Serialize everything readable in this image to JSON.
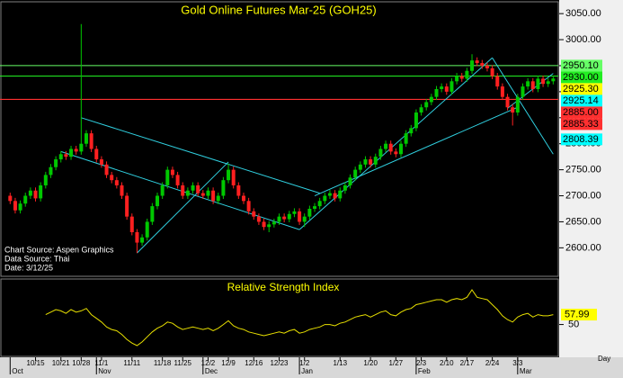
{
  "chart_data": {
    "type": "candlestick",
    "title": "Gold Online Futures Mar-25 (GOH25)",
    "notes": [
      "Chart Source: Aspen Graphics",
      "Data Source: Thai",
      "Date: 3/12/25"
    ],
    "x_axis_label": "Day",
    "up_color": "#00c800",
    "down_color": "#ff2020",
    "xlim": [
      -2,
      108
    ],
    "ylim": [
      2547,
      3071
    ],
    "yticks": [
      {
        "value": 3050,
        "label": "3050.00"
      },
      {
        "value": 3000,
        "label": "3000.00"
      },
      {
        "value": 2950,
        "label": "2950.00"
      },
      {
        "value": 2900,
        "label": "2900.00"
      },
      {
        "value": 2850,
        "label": "2850.00"
      },
      {
        "value": 2800,
        "label": "2800.00"
      },
      {
        "value": 2750,
        "label": "2750.00"
      },
      {
        "value": 2700,
        "label": "2700.00"
      },
      {
        "value": 2650,
        "label": "2650.00"
      },
      {
        "value": 2600,
        "label": "2600.00"
      }
    ],
    "xticks": [
      {
        "value": 5,
        "label": "10/15"
      },
      {
        "value": 10,
        "label": "10/21"
      },
      {
        "value": 14,
        "label": "10/28"
      },
      {
        "value": 18,
        "label": "11/1"
      },
      {
        "value": 24,
        "label": "11/11"
      },
      {
        "value": 30,
        "label": "11/18"
      },
      {
        "value": 34,
        "label": "11/25"
      },
      {
        "value": 39,
        "label": "12/2"
      },
      {
        "value": 43,
        "label": "12/9"
      },
      {
        "value": 48,
        "label": "12/16"
      },
      {
        "value": 53,
        "label": "12/23"
      },
      {
        "value": 58,
        "label": "1/2"
      },
      {
        "value": 65,
        "label": "1/13"
      },
      {
        "value": 71,
        "label": "1/20"
      },
      {
        "value": 76,
        "label": "1/27"
      },
      {
        "value": 81,
        "label": "2/3"
      },
      {
        "value": 86,
        "label": "2/10"
      },
      {
        "value": 90,
        "label": "2/17"
      },
      {
        "value": 95,
        "label": "2/24"
      },
      {
        "value": 100,
        "label": "3/3"
      }
    ],
    "months": [
      {
        "value": 0,
        "label": "Oct"
      },
      {
        "value": 17,
        "label": "Nov"
      },
      {
        "value": 38,
        "label": "Dec"
      },
      {
        "value": 57,
        "label": "Jan"
      },
      {
        "value": 80,
        "label": "Feb"
      },
      {
        "value": 100,
        "label": "Mar"
      }
    ],
    "candles": [
      [
        2700,
        2706,
        2684,
        2690
      ],
      [
        2690,
        2696,
        2666,
        2672
      ],
      [
        2672,
        2691,
        2666,
        2685
      ],
      [
        2685,
        2706,
        2679,
        2700
      ],
      [
        2700,
        2716,
        2694,
        2710
      ],
      [
        2710,
        2716,
        2689,
        2695
      ],
      [
        2695,
        2726,
        2689,
        2720
      ],
      [
        2720,
        2746,
        2714,
        2740
      ],
      [
        2740,
        2761,
        2734,
        2755
      ],
      [
        2755,
        2776,
        2749,
        2770
      ],
      [
        2770,
        2786,
        2764,
        2780
      ],
      [
        2780,
        2786,
        2769,
        2775
      ],
      [
        2775,
        2796,
        2769,
        2790
      ],
      [
        2790,
        2796,
        2779,
        2785
      ],
      [
        2785,
        3030,
        2779,
        2800
      ],
      [
        2800,
        2826,
        2794,
        2820
      ],
      [
        2820,
        2826,
        2784,
        2790
      ],
      [
        2790,
        2796,
        2764,
        2770
      ],
      [
        2770,
        2776,
        2754,
        2760
      ],
      [
        2760,
        2766,
        2734,
        2740
      ],
      [
        2740,
        2746,
        2724,
        2730
      ],
      [
        2730,
        2736,
        2714,
        2720
      ],
      [
        2720,
        2726,
        2694,
        2700
      ],
      [
        2700,
        2706,
        2654,
        2660
      ],
      [
        2660,
        2666,
        2624,
        2630
      ],
      [
        2630,
        2636,
        2590,
        2610
      ],
      [
        2610,
        2626,
        2604,
        2620
      ],
      [
        2620,
        2656,
        2614,
        2650
      ],
      [
        2650,
        2686,
        2644,
        2680
      ],
      [
        2680,
        2706,
        2674,
        2700
      ],
      [
        2700,
        2726,
        2694,
        2720
      ],
      [
        2720,
        2756,
        2714,
        2750
      ],
      [
        2750,
        2756,
        2734,
        2740
      ],
      [
        2740,
        2746,
        2714,
        2720
      ],
      [
        2720,
        2726,
        2694,
        2700
      ],
      [
        2700,
        2716,
        2694,
        2710
      ],
      [
        2710,
        2726,
        2704,
        2720
      ],
      [
        2720,
        2726,
        2699,
        2705
      ],
      [
        2705,
        2711,
        2694,
        2700
      ],
      [
        2700,
        2716,
        2694,
        2710
      ],
      [
        2710,
        2716,
        2684,
        2690
      ],
      [
        2690,
        2706,
        2684,
        2700
      ],
      [
        2700,
        2736,
        2694,
        2730
      ],
      [
        2730,
        2762,
        2724,
        2750
      ],
      [
        2750,
        2756,
        2714,
        2720
      ],
      [
        2720,
        2726,
        2694,
        2700
      ],
      [
        2700,
        2706,
        2684,
        2690
      ],
      [
        2690,
        2696,
        2664,
        2670
      ],
      [
        2670,
        2676,
        2654,
        2660
      ],
      [
        2660,
        2666,
        2644,
        2650
      ],
      [
        2650,
        2656,
        2634,
        2640
      ],
      [
        2640,
        2651,
        2630,
        2645
      ],
      [
        2645,
        2656,
        2639,
        2650
      ],
      [
        2650,
        2666,
        2644,
        2660
      ],
      [
        2660,
        2666,
        2649,
        2655
      ],
      [
        2655,
        2671,
        2649,
        2665
      ],
      [
        2665,
        2676,
        2659,
        2670
      ],
      [
        2670,
        2676,
        2644,
        2650
      ],
      [
        2650,
        2666,
        2640,
        2660
      ],
      [
        2660,
        2681,
        2654,
        2675
      ],
      [
        2675,
        2686,
        2669,
        2680
      ],
      [
        2680,
        2696,
        2674,
        2690
      ],
      [
        2690,
        2706,
        2684,
        2700
      ],
      [
        2700,
        2711,
        2694,
        2705
      ],
      [
        2705,
        2711,
        2689,
        2695
      ],
      [
        2695,
        2716,
        2689,
        2710
      ],
      [
        2710,
        2726,
        2704,
        2720
      ],
      [
        2720,
        2741,
        2714,
        2735
      ],
      [
        2735,
        2756,
        2729,
        2750
      ],
      [
        2750,
        2766,
        2744,
        2760
      ],
      [
        2760,
        2776,
        2754,
        2770
      ],
      [
        2770,
        2776,
        2754,
        2760
      ],
      [
        2760,
        2781,
        2754,
        2775
      ],
      [
        2775,
        2796,
        2769,
        2790
      ],
      [
        2790,
        2806,
        2784,
        2800
      ],
      [
        2800,
        2806,
        2779,
        2785
      ],
      [
        2785,
        2791,
        2774,
        2780
      ],
      [
        2780,
        2806,
        2774,
        2800
      ],
      [
        2800,
        2826,
        2794,
        2820
      ],
      [
        2820,
        2836,
        2814,
        2830
      ],
      [
        2830,
        2866,
        2824,
        2860
      ],
      [
        2860,
        2876,
        2854,
        2870
      ],
      [
        2870,
        2886,
        2864,
        2880
      ],
      [
        2880,
        2896,
        2874,
        2890
      ],
      [
        2890,
        2911,
        2884,
        2905
      ],
      [
        2905,
        2916,
        2899,
        2910
      ],
      [
        2910,
        2916,
        2894,
        2900
      ],
      [
        2900,
        2926,
        2894,
        2920
      ],
      [
        2920,
        2936,
        2914,
        2930
      ],
      [
        2930,
        2936,
        2919,
        2925
      ],
      [
        2925,
        2946,
        2919,
        2940
      ],
      [
        2940,
        2972,
        2934,
        2960
      ],
      [
        2960,
        2966,
        2949,
        2955
      ],
      [
        2955,
        2961,
        2944,
        2950
      ],
      [
        2950,
        2956,
        2939,
        2945
      ],
      [
        2945,
        2951,
        2924,
        2930
      ],
      [
        2930,
        2936,
        2904,
        2910
      ],
      [
        2910,
        2916,
        2884,
        2890
      ],
      [
        2890,
        2896,
        2864,
        2870
      ],
      [
        2870,
        2876,
        2835,
        2860
      ],
      [
        2860,
        2896,
        2854,
        2890
      ],
      [
        2890,
        2916,
        2884,
        2910
      ],
      [
        2910,
        2926,
        2904,
        2920
      ],
      [
        2920,
        2926,
        2899,
        2905
      ],
      [
        2905,
        2931,
        2899,
        2925
      ],
      [
        2925,
        2931,
        2909,
        2915
      ],
      [
        2915,
        2926,
        2909,
        2920
      ],
      [
        2920,
        2931,
        2914,
        2925.3
      ]
    ],
    "trendlines": [
      {
        "x": [
          14,
          61
        ],
        "y": [
          2850,
          2705
        ]
      },
      {
        "x": [
          10,
          57
        ],
        "y": [
          2785,
          2635
        ]
      },
      {
        "x": [
          25,
          43
        ],
        "y": [
          2590,
          2765
        ]
      },
      {
        "x": [
          57,
          95
        ],
        "y": [
          2635,
          2965
        ]
      },
      {
        "x": [
          60,
          100
        ],
        "y": [
          2700,
          2870
        ]
      },
      {
        "x": [
          95,
          107
        ],
        "y": [
          2965,
          2780
        ]
      },
      {
        "x": [
          98,
          107
        ],
        "y": [
          2868,
          2935
        ]
      }
    ],
    "trendline_color": "#30d0e0",
    "levels": [
      {
        "value": 2950.1,
        "label": "2950.10",
        "color": "#66ff66",
        "line": true
      },
      {
        "value": 2930,
        "label": "2930.00",
        "color": "#22ee22",
        "line": true
      },
      {
        "value": 2925.3,
        "label": "2925.30",
        "color": "#ffff00",
        "line": false
      },
      {
        "value": 2925.14,
        "label": "2925.14",
        "color": "#00ffff",
        "line": false
      },
      {
        "value": 2885,
        "label": "2885.00",
        "color": "#ff3030",
        "line": true
      },
      {
        "value": 2885.33,
        "label": "2885.33",
        "color": "#ff3030",
        "line": true
      },
      {
        "value": 2808.39,
        "label": "2808.39",
        "color": "#00ffff",
        "line": false
      }
    ],
    "rsi": {
      "title": "Relative Strength Index",
      "color": "#e8e000",
      "ylim": [
        25,
        86
      ],
      "yticks": [
        50
      ],
      "values": [
        null,
        null,
        null,
        null,
        null,
        null,
        null,
        58,
        60,
        62,
        61,
        59,
        62,
        60,
        61,
        63,
        58,
        55,
        52,
        48,
        46,
        45,
        42,
        38,
        35,
        33,
        36,
        40,
        44,
        47,
        49,
        52,
        51,
        48,
        46,
        47,
        48,
        47,
        46,
        47,
        45,
        47,
        50,
        53,
        49,
        47,
        46,
        44,
        43,
        42,
        41,
        42,
        43,
        44,
        43,
        45,
        46,
        43,
        44,
        46,
        47,
        48,
        50,
        50,
        49,
        51,
        52,
        54,
        56,
        57,
        58,
        56,
        58,
        60,
        61,
        58,
        57,
        60,
        62,
        63,
        66,
        67,
        68,
        69,
        70,
        70,
        68,
        70,
        71,
        70,
        72,
        78,
        72,
        71,
        70,
        66,
        62,
        57,
        54,
        52,
        56,
        58,
        59,
        56,
        58,
        57,
        57,
        57.99
      ]
    }
  }
}
